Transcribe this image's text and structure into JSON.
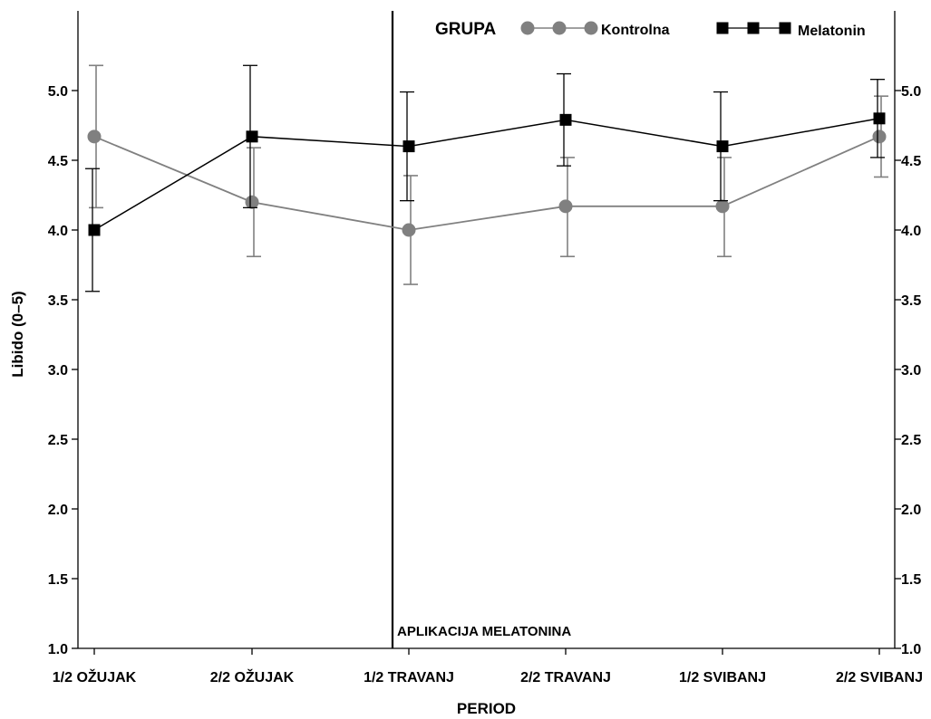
{
  "chart_data": {
    "type": "line",
    "xlabel": "PERIOD",
    "ylabel": "Libido (0–5)",
    "categories": [
      "1/2 OŽUJAK",
      "2/2 OŽUJAK",
      "1/2 TRAVANJ",
      "2/2 TRAVANJ",
      "1/2 SVIBANJ",
      "2/2 SVIBANJ"
    ],
    "ylim": [
      1.0,
      5.5
    ],
    "yticks": [
      "1.0",
      "1.5",
      "2.0",
      "2.5",
      "3.0",
      "3.5",
      "4.0",
      "4.5",
      "5.0"
    ],
    "ytick_values": [
      1.0,
      1.5,
      2.0,
      2.5,
      3.0,
      3.5,
      4.0,
      4.5,
      5.0
    ],
    "grid": false,
    "secondary_y_axis": "mirrored on right",
    "legend": {
      "title": "GRUPA",
      "placement": "top-right"
    },
    "series": [
      {
        "name": "Kontrolna",
        "color": "#808080",
        "marker": "circle",
        "values": [
          4.67,
          4.2,
          4.0,
          4.17,
          4.17,
          4.67
        ],
        "err_low": [
          4.16,
          3.81,
          3.61,
          3.81,
          3.81,
          4.38
        ],
        "err_high": [
          5.18,
          4.59,
          4.39,
          4.52,
          4.52,
          4.96
        ]
      },
      {
        "name": "Melatonin",
        "color": "#000000",
        "marker": "square",
        "values": [
          4.0,
          4.67,
          4.6,
          4.79,
          4.6,
          4.8
        ],
        "err_low": [
          3.56,
          4.16,
          4.21,
          4.46,
          4.21,
          4.52
        ],
        "err_high": [
          4.44,
          5.18,
          4.99,
          5.12,
          4.99,
          5.08
        ]
      }
    ],
    "annotations": [
      {
        "text": "APLIKACIJA MELATONINA",
        "x_category_index": 2
      }
    ]
  }
}
